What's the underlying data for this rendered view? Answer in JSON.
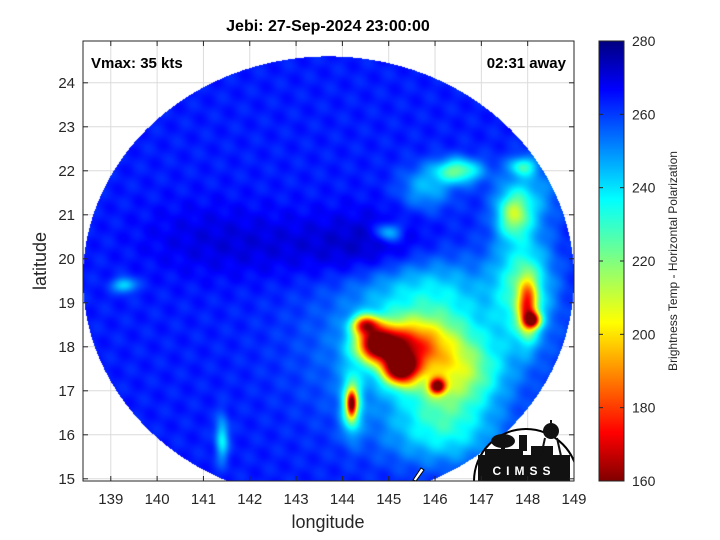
{
  "chart_data": {
    "type": "heatmap",
    "title": "Jebi: 27-Sep-2024 23:00:00",
    "xlabel": "longitude",
    "ylabel": "latitude",
    "xlim": [
      138.4,
      149.0
    ],
    "ylim": [
      14.95,
      24.95
    ],
    "xticks": [
      139,
      140,
      141,
      142,
      143,
      144,
      145,
      146,
      147,
      148,
      149
    ],
    "yticks": [
      15,
      16,
      17,
      18,
      19,
      20,
      21,
      22,
      23,
      24
    ],
    "grid": true,
    "annotations": {
      "vmax": "Vmax: 35 kts",
      "time_offset": "02:31 away"
    },
    "colorbar": {
      "label": "Brightness Temp - Horizontal Polarization",
      "min": 160,
      "max": 280,
      "ticks": [
        160,
        180,
        200,
        220,
        240,
        260,
        280
      ],
      "colormap": "jet"
    },
    "swath": {
      "center": [
        143.7,
        19.55
      ],
      "radius_lon": 5.3,
      "radius_lat": 5.05
    },
    "background_value": 262,
    "features": [
      {
        "lon": 144.8,
        "lat": 20.0,
        "sx": 0.9,
        "sy": 0.7,
        "value": 274
      },
      {
        "lon": 143.0,
        "lat": 20.3,
        "sx": 1.5,
        "sy": 0.5,
        "value": 268
      },
      {
        "lon": 141.0,
        "lat": 20.5,
        "sx": 1.0,
        "sy": 0.6,
        "value": 266
      },
      {
        "lon": 145.6,
        "lat": 18.0,
        "sx": 1.5,
        "sy": 1.3,
        "value": 242
      },
      {
        "lon": 146.2,
        "lat": 17.5,
        "sx": 0.6,
        "sy": 0.9,
        "value": 230
      },
      {
        "lon": 145.4,
        "lat": 19.4,
        "sx": 1.0,
        "sy": 0.5,
        "value": 246
      },
      {
        "lon": 145.3,
        "lat": 18.05,
        "sx": 0.55,
        "sy": 0.4,
        "value": 205
      },
      {
        "lon": 144.75,
        "lat": 18.05,
        "sx": 0.3,
        "sy": 0.25,
        "value": 185
      },
      {
        "lon": 145.25,
        "lat": 17.5,
        "sx": 0.25,
        "sy": 0.25,
        "value": 178
      },
      {
        "lon": 144.5,
        "lat": 18.5,
        "sx": 0.2,
        "sy": 0.15,
        "value": 198
      },
      {
        "lon": 146.05,
        "lat": 17.1,
        "sx": 0.12,
        "sy": 0.12,
        "value": 192
      },
      {
        "lon": 144.2,
        "lat": 16.7,
        "sx": 0.15,
        "sy": 0.45,
        "value": 218
      },
      {
        "lon": 144.2,
        "lat": 16.7,
        "sx": 0.07,
        "sy": 0.2,
        "value": 204
      },
      {
        "lon": 147.9,
        "lat": 19.4,
        "sx": 0.45,
        "sy": 0.9,
        "value": 230
      },
      {
        "lon": 148.0,
        "lat": 18.9,
        "sx": 0.15,
        "sy": 0.45,
        "value": 205
      },
      {
        "lon": 148.1,
        "lat": 18.6,
        "sx": 0.12,
        "sy": 0.12,
        "value": 196
      },
      {
        "lon": 147.7,
        "lat": 21.0,
        "sx": 0.25,
        "sy": 0.35,
        "value": 226
      },
      {
        "lon": 146.5,
        "lat": 22.0,
        "sx": 0.35,
        "sy": 0.2,
        "value": 224
      },
      {
        "lon": 145.8,
        "lat": 21.6,
        "sx": 0.4,
        "sy": 0.35,
        "value": 244
      },
      {
        "lon": 148.0,
        "lat": 21.5,
        "sx": 0.5,
        "sy": 0.5,
        "value": 246
      },
      {
        "lon": 147.9,
        "lat": 22.1,
        "sx": 0.2,
        "sy": 0.15,
        "value": 236
      },
      {
        "lon": 145.0,
        "lat": 20.6,
        "sx": 0.2,
        "sy": 0.15,
        "value": 238
      },
      {
        "lon": 146.2,
        "lat": 16.0,
        "sx": 0.9,
        "sy": 0.5,
        "value": 246
      },
      {
        "lon": 141.4,
        "lat": 15.9,
        "sx": 0.1,
        "sy": 0.35,
        "value": 236
      },
      {
        "lon": 139.3,
        "lat": 19.4,
        "sx": 0.18,
        "sy": 0.12,
        "value": 238
      },
      {
        "lon": 146.9,
        "lat": 17.4,
        "sx": 0.5,
        "sy": 0.5,
        "value": 248
      }
    ]
  },
  "logo": {
    "text": "CIMSS"
  }
}
